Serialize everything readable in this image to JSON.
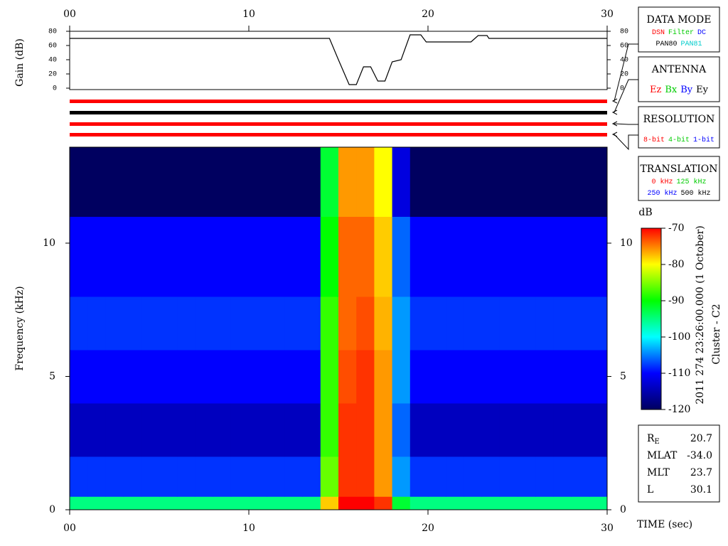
{
  "chart_data": [
    {
      "type": "line",
      "ylabel": "Gain (dB)",
      "color": "#000000",
      "x": [
        0,
        14.5,
        15,
        15.6,
        16,
        16.4,
        16.8,
        17.2,
        17.6,
        18,
        18.5,
        19,
        19.6,
        19.9,
        22.4,
        22.8,
        23.3,
        23.4,
        30
      ],
      "values": [
        70,
        70,
        40,
        5,
        5,
        30,
        30,
        10,
        10,
        37,
        40,
        75,
        75,
        65,
        65,
        74,
        74,
        70,
        70
      ],
      "xlim": [
        0,
        30
      ],
      "xticks": [
        {
          "value": 0,
          "label": "00"
        },
        10,
        20,
        30
      ],
      "ylim": [
        0,
        80
      ],
      "yticks": [
        0,
        20,
        40,
        60,
        80
      ]
    },
    {
      "type": "heatmap",
      "ylabel": "Frequency (kHz)",
      "xlabel": "TIME (sec)",
      "x_bins": [
        0,
        1,
        2,
        3,
        4,
        5,
        6,
        7,
        8,
        9,
        10,
        11,
        12,
        13,
        14,
        15,
        16,
        17,
        18,
        19,
        20,
        21,
        22,
        23,
        24,
        25,
        26,
        27,
        28,
        29,
        30
      ],
      "y_bins": [
        0,
        0.5,
        2,
        4,
        6,
        8,
        11,
        13.6
      ],
      "z": [
        [
          -95,
          -95,
          -95,
          -95,
          -95,
          -95,
          -95,
          -95,
          -95,
          -95,
          -95,
          -95,
          -95,
          -95,
          -78,
          -70,
          -70,
          -72,
          -92,
          -95,
          -95,
          -95,
          -95,
          -95,
          -95,
          -95,
          -95,
          -95,
          -95,
          -95
        ],
        [
          -108,
          -108,
          -108,
          -108,
          -108,
          -108,
          -108,
          -108,
          -108,
          -108,
          -108,
          -108,
          -108,
          -108,
          -86,
          -72,
          -72,
          -76,
          -104,
          -108,
          -108,
          -108,
          -108,
          -108,
          -108,
          -108,
          -108,
          -108,
          -108,
          -108
        ],
        [
          -114,
          -114,
          -114,
          -114,
          -114,
          -114,
          -114,
          -114,
          -114,
          -114,
          -114,
          -114,
          -114,
          -114,
          -88,
          -72,
          -72,
          -76,
          -106,
          -114,
          -114,
          -114,
          -114,
          -114,
          -114,
          -114,
          -114,
          -114,
          -114,
          -114
        ],
        [
          -110,
          -110,
          -110,
          -110,
          -110,
          -110,
          -110,
          -110,
          -110,
          -110,
          -110,
          -110,
          -110,
          -110,
          -88,
          -73,
          -72,
          -76,
          -104,
          -110,
          -110,
          -110,
          -110,
          -110,
          -110,
          -110,
          -110,
          -110,
          -110,
          -110
        ],
        [
          -108,
          -108,
          -108,
          -108,
          -108,
          -108,
          -108,
          -108,
          -108,
          -108,
          -108,
          -108,
          -108,
          -108,
          -88,
          -74,
          -73,
          -77,
          -104,
          -108,
          -108,
          -108,
          -108,
          -108,
          -108,
          -108,
          -108,
          -108,
          -108,
          -108
        ],
        [
          -110,
          -110,
          -110,
          -110,
          -110,
          -110,
          -110,
          -110,
          -110,
          -110,
          -110,
          -110,
          -110,
          -110,
          -90,
          -74,
          -74,
          -78,
          -106,
          -110,
          -110,
          -110,
          -110,
          -110,
          -110,
          -110,
          -110,
          -110,
          -110,
          -110
        ],
        [
          -122,
          -122,
          -122,
          -122,
          -122,
          -122,
          -122,
          -122,
          -122,
          -122,
          -122,
          -122,
          -122,
          -122,
          -92,
          -76,
          -76,
          -80,
          -112,
          -122,
          -122,
          -122,
          -122,
          -122,
          -122,
          -122,
          -122,
          -122,
          -122,
          -122
        ]
      ],
      "colormap": [
        "#000060",
        "#0000ff",
        "#00ffff",
        "#00ff00",
        "#ffff00",
        "#ff0000"
      ],
      "colorbar_title": "dB",
      "zlim": [
        -120,
        -70
      ],
      "zticks": [
        -70,
        -80,
        -90,
        -100,
        -110,
        -120
      ],
      "xlim": [
        0,
        30
      ],
      "xticks": [
        {
          "value": 0,
          "label": "00"
        },
        10,
        20,
        30
      ],
      "ylim": [
        0,
        13.6
      ],
      "yticks": [
        0,
        5,
        10
      ]
    }
  ],
  "panels": [
    {
      "title": "DATA MODE",
      "lines": [
        [
          {
            "text": "DSN",
            "color": "#ff0000"
          },
          {
            "text": "Filter",
            "color": "#00cc00"
          },
          {
            "text": "DC",
            "color": "#0000ff"
          }
        ],
        [
          {
            "text": "PAN80",
            "color": "#000000"
          },
          {
            "text": "PAN81",
            "color": "#00cccc"
          }
        ]
      ]
    },
    {
      "title": "ANTENNA",
      "lines": [
        [
          {
            "text": "Ez",
            "color": "#ff0000"
          },
          {
            "text": "Bx",
            "color": "#00cc00"
          },
          {
            "text": "By",
            "color": "#0000ff"
          },
          {
            "text": "Ey",
            "color": "#000000"
          }
        ]
      ]
    },
    {
      "title": "RESOLUTION",
      "lines": [
        [
          {
            "text": "8-bit",
            "color": "#ff0000"
          },
          {
            "text": "4-bit",
            "color": "#00cc00"
          },
          {
            "text": "1-bit",
            "color": "#0000ff"
          }
        ]
      ]
    },
    {
      "title": "TRANSLATION",
      "lines": [
        [
          {
            "text": "0 kHz",
            "color": "#ff0000"
          },
          {
            "text": "125 kHz",
            "color": "#00cc00"
          }
        ],
        [
          {
            "text": "250 kHz",
            "color": "#0000ff"
          },
          {
            "text": "500 kHz",
            "color": "#000000"
          }
        ]
      ]
    }
  ],
  "orbit": [
    {
      "label": "R",
      "sub": "E",
      "value": "20.7"
    },
    {
      "label": "MLAT",
      "value": "-34.0"
    },
    {
      "label": "MLT",
      "value": "23.7"
    },
    {
      "label": "L",
      "value": "30.1"
    }
  ],
  "timestamp": "2011 274 23:26:00.000 (1 October)",
  "spacecraft": "Cluster - C2"
}
